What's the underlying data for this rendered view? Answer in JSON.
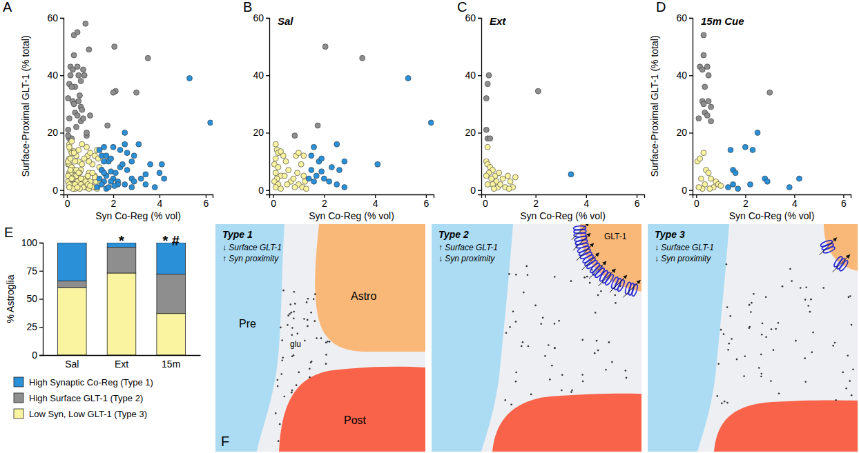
{
  "chart_data": [
    {
      "type": "scatter",
      "panel": "A",
      "x_label": "Syn Co-Reg (% vol)",
      "y_label": "Surface-Proximal GLT-1 (% total)",
      "xlim": [
        -0.15,
        6.3
      ],
      "ylim": [
        -1.5,
        60
      ],
      "xticks": [
        0,
        2,
        4,
        6
      ],
      "yticks": [
        0,
        20,
        40,
        60
      ],
      "series": [
        {
          "color": "#8e8e8e",
          "x": [
            2.05,
            3.5,
            1.75,
            0.85,
            0.1,
            0.15,
            0.05,
            0.05,
            0.1,
            0.2,
            2.1,
            0.3,
            0.3,
            0.15,
            0.25,
            0.45,
            0.5,
            0.35,
            0.25,
            0.3,
            0.5,
            0.6,
            0.35,
            0.45,
            0.6,
            0.1,
            3,
            0.8,
            0.45,
            0.95,
            0.7,
            0.75,
            0.6,
            0.2,
            0.55,
            0.7,
            0.85,
            1.0,
            0.4,
            0.05,
            0.65,
            2.0
          ],
          "values": [
            50,
            46,
            22.5,
            19,
            37,
            40,
            32,
            21,
            18,
            18,
            34.5,
            54,
            47,
            43,
            42,
            43,
            40,
            36,
            31,
            30,
            31,
            29,
            27,
            26,
            24,
            25,
            34,
            58,
            55,
            49,
            42,
            40,
            38,
            36,
            33,
            25,
            20,
            26,
            22,
            19,
            28,
            34
          ]
        },
        {
          "color": "#faf4a0",
          "x": [
            0.1,
            0.15,
            0.2,
            0.1,
            0.05,
            0.2,
            0.1,
            0.3,
            0.15,
            0.05,
            0.2,
            0.1,
            0.3,
            0.4,
            0.5,
            0.6,
            0.7,
            0.8,
            0.9,
            1.0,
            1.1,
            1.2,
            1.0,
            1.15,
            0.95,
            1.3,
            1.2,
            0.85,
            0.55,
            0.45,
            0.3,
            1.25,
            0.05,
            0.1,
            0.2,
            0.3,
            0.15,
            0.4,
            0.25,
            0.45,
            0.3,
            0.5,
            0.6,
            0.7,
            0.9,
            0.8,
            1.0,
            1.2,
            1.1,
            0.95,
            0.35,
            0.1,
            0.05,
            0.55,
            0.1,
            0.05,
            0.15,
            0.3,
            0.4,
            0.5,
            0.2,
            0.35,
            0.6,
            0.7,
            0.8,
            0.9,
            1.0,
            0.55,
            0.25,
            0.1,
            1.4,
            1.3,
            0.65,
            0.75,
            0.85,
            1.45,
            0.5,
            0.2,
            1.1,
            0.65,
            1.35,
            0.35,
            0.15,
            0.45,
            0.95
          ],
          "values": [
            16,
            14,
            13,
            11,
            9,
            8,
            6,
            5,
            4,
            3,
            2,
            1,
            0.5,
            12,
            10,
            7,
            3,
            4,
            12,
            13,
            9,
            5,
            2,
            1,
            6,
            0.5,
            12,
            1,
            2,
            5,
            13.5,
            3,
            10,
            9,
            8,
            7,
            6,
            5,
            4,
            3,
            2,
            1,
            2,
            4,
            5,
            1,
            3,
            4.5,
            1,
            0.5,
            0.5,
            2,
            5,
            6,
            15,
            10,
            11,
            13,
            7,
            6,
            4,
            2,
            4,
            1,
            3,
            2,
            1.5,
            0.5,
            0.5,
            1,
            8,
            14,
            16,
            11,
            15,
            3,
            14,
            17,
            6,
            9,
            11,
            10,
            7,
            1,
            10
          ]
        },
        {
          "color": "#2a90d8",
          "x": [
            5.3,
            6.2,
            4.1,
            2.8,
            2.5,
            2.6,
            2.3,
            2.0,
            1.9,
            1.7,
            1.6,
            1.5,
            1.5,
            1.8,
            2.2,
            1.4,
            1.6,
            2.5,
            2.8,
            1.9,
            3.4,
            1.4,
            1.5,
            1.6,
            1.5,
            2.2,
            2.0,
            2.5,
            2.3,
            2.8,
            2.9,
            3.8,
            4.2,
            1.7,
            1.3,
            1.6,
            1.7,
            1.9,
            2.1,
            2.4,
            3.2,
            3.6,
            4.0,
            3.1,
            1.8,
            2.6,
            2.9,
            3.4,
            2.05
          ],
          "values": [
            39,
            23.5,
            9,
            10,
            16,
            7,
            8,
            4,
            6.5,
            5,
            15,
            12,
            7,
            10,
            3,
            4,
            3,
            2,
            1,
            11,
            5.5,
            14,
            7,
            6,
            2,
            2,
            15,
            20,
            14,
            4,
            3,
            1,
            4,
            0.5,
            1,
            10,
            12,
            3,
            6,
            9,
            4,
            9,
            6,
            16,
            1,
            13,
            12,
            2,
            1.5
          ]
        }
      ]
    },
    {
      "type": "scatter",
      "panel": "B",
      "title": "Sal",
      "x_label": "Syn Co-Reg (% vol)",
      "xlim": [
        -0.15,
        6.3
      ],
      "ylim": [
        -1.5,
        60
      ],
      "xticks": [
        0,
        2,
        4,
        6
      ],
      "yticks": [
        0,
        20,
        40,
        60
      ],
      "series": [
        {
          "color": "#8e8e8e",
          "x": [
            2.05,
            3.5,
            1.75,
            0.85
          ],
          "values": [
            50,
            46,
            22.5,
            19
          ]
        },
        {
          "color": "#faf4a0",
          "x": [
            0.1,
            0.15,
            0.2,
            0.1,
            0.05,
            0.2,
            0.1,
            0.3,
            0.15,
            0.05,
            0.2,
            0.1,
            0.3,
            0.4,
            0.5,
            0.6,
            0.7,
            0.8,
            0.9,
            1.0,
            1.1,
            1.2,
            1.0,
            1.15,
            0.95,
            1.3,
            1.2,
            0.85,
            0.55,
            0.45,
            0.3,
            1.25
          ],
          "values": [
            16,
            14,
            13,
            11,
            9,
            8,
            6,
            5,
            4,
            3,
            2,
            1,
            0.5,
            12,
            10,
            7,
            3,
            4,
            12,
            13,
            9,
            5,
            2,
            1,
            6,
            0.5,
            12,
            1,
            2,
            5,
            13.5,
            3
          ]
        },
        {
          "color": "#2a90d8",
          "x": [
            5.3,
            6.2,
            4.1,
            2.8,
            2.5,
            2.6,
            2.3,
            2.0,
            1.9,
            1.7,
            1.6,
            1.5,
            1.5,
            1.8,
            2.2,
            1.4,
            1.6,
            2.5,
            2.8,
            1.9
          ],
          "values": [
            39,
            23.5,
            9,
            10,
            16,
            7,
            8,
            4,
            6.5,
            5,
            15,
            12,
            7,
            10,
            3,
            4,
            3,
            2,
            1,
            11
          ]
        }
      ]
    },
    {
      "type": "scatter",
      "panel": "C",
      "title": "Ext",
      "x_label": "Syn Co-Reg (% vol)",
      "xlim": [
        -0.15,
        6.3
      ],
      "ylim": [
        -1.5,
        60
      ],
      "xticks": [
        0,
        2,
        4,
        6
      ],
      "yticks": [
        0,
        20,
        40,
        60
      ],
      "series": [
        {
          "color": "#8e8e8e",
          "x": [
            0.1,
            0.15,
            0.05,
            0.05,
            0.1,
            0.2,
            2.1
          ],
          "values": [
            37,
            40,
            32,
            21,
            18,
            18,
            34.5
          ]
        },
        {
          "color": "#faf4a0",
          "x": [
            0.05,
            0.1,
            0.2,
            0.3,
            0.15,
            0.4,
            0.25,
            0.45,
            0.3,
            0.5,
            0.6,
            0.7,
            0.9,
            0.8,
            1.0,
            1.2,
            1.1,
            0.95,
            0.35,
            0.1,
            0.05,
            0.55,
            0.1
          ],
          "values": [
            10,
            9,
            8,
            7,
            6,
            5,
            4,
            3,
            2,
            1,
            2,
            4,
            5,
            1,
            3,
            4.5,
            1,
            0.5,
            0.5,
            2,
            5,
            6,
            15
          ]
        },
        {
          "color": "#2a90d8",
          "x": [
            3.4
          ],
          "values": [
            5.5
          ]
        }
      ]
    },
    {
      "type": "scatter",
      "panel": "D",
      "title": "15m Cue",
      "x_label": "Syn Co-Reg (% vol)",
      "y_label": "Surface-Proximal GLT-1 (% total)",
      "xlim": [
        -0.15,
        6.3
      ],
      "ylim": [
        -1.5,
        60
      ],
      "xticks": [
        0,
        2,
        4,
        6
      ],
      "yticks": [
        0,
        20,
        40,
        60
      ],
      "series": [
        {
          "color": "#8e8e8e",
          "x": [
            0.3,
            0.3,
            0.15,
            0.25,
            0.45,
            0.5,
            0.35,
            0.25,
            0.3,
            0.5,
            0.6,
            0.35,
            0.45,
            0.6,
            0.1,
            3
          ],
          "values": [
            54,
            47,
            43,
            42,
            43,
            40,
            36,
            31,
            30,
            31,
            29,
            27,
            26,
            24,
            25,
            34
          ]
        },
        {
          "color": "#faf4a0",
          "x": [
            0.05,
            0.15,
            0.3,
            0.4,
            0.5,
            0.2,
            0.35,
            0.6,
            0.7,
            0.8,
            0.9,
            1.0,
            0.55,
            0.25,
            0.1
          ],
          "values": [
            10,
            11,
            13,
            7,
            6,
            4,
            2,
            4,
            1,
            3,
            2,
            1.5,
            0.5,
            0.5,
            1
          ]
        },
        {
          "color": "#2a90d8",
          "x": [
            1.4,
            1.5,
            1.6,
            1.5,
            2.2,
            2.0,
            2.5,
            2.3,
            2.8,
            2.9,
            3.8,
            4.2,
            1.7,
            1.3
          ],
          "values": [
            14,
            7,
            6,
            2,
            2,
            15,
            20,
            14,
            4,
            3,
            1,
            4,
            0.5,
            1
          ]
        }
      ]
    },
    {
      "type": "bar",
      "stacked": true,
      "panel": "E",
      "y_label": "% Astroglia",
      "categories": [
        "Sal",
        "Ext",
        "15m"
      ],
      "ylim": [
        0,
        100
      ],
      "yticks": [
        0,
        25,
        50,
        75,
        100
      ],
      "legend": "bottom",
      "series": [
        {
          "name": "Low Syn, Low GLT-1 (Type 3)",
          "color": "#faf4a0",
          "values": [
            60,
            73,
            37
          ]
        },
        {
          "name": "High Surface GLT-1 (Type 2)",
          "color": "#8e8e8e",
          "values": [
            6,
            23,
            35
          ]
        },
        {
          "name": "High Synaptic Co-Reg (Type 1)",
          "color": "#2a90d8",
          "values": [
            34,
            4,
            28
          ]
        }
      ],
      "annotations": [
        {
          "category": "Ext",
          "text": "*"
        },
        {
          "category": "15m",
          "text": "* #"
        }
      ]
    }
  ],
  "diagram": {
    "panel": "F",
    "panels": [
      {
        "title": "Type 1",
        "lines": [
          "↓ Surface GLT-1",
          "↑ Syn proximity"
        ],
        "labels": [
          "Pre",
          "Astro",
          "Post",
          "glu"
        ]
      },
      {
        "title": "Type 2",
        "lines": [
          "↑ Surface GLT-1",
          "↓ Syn proximity"
        ],
        "labels": [
          "GLT-1"
        ]
      },
      {
        "title": "Type 3",
        "lines": [
          "↓ Surface GLT-1",
          "↓ Syn proximity"
        ]
      }
    ]
  }
}
